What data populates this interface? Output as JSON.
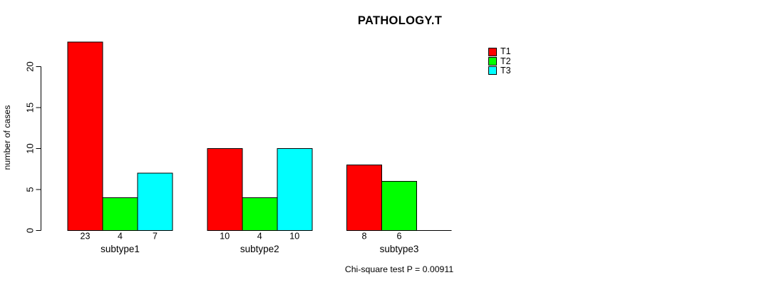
{
  "title": "PATHOLOGY.T",
  "chart_data": {
    "type": "bar",
    "title": "PATHOLOGY.T",
    "ylabel": "number of cases",
    "xlabel": "",
    "categories": [
      "subtype1",
      "subtype2",
      "subtype3"
    ],
    "series": [
      {
        "name": "T1",
        "color": "#ff0000",
        "values": [
          23,
          10,
          8
        ]
      },
      {
        "name": "T2",
        "color": "#00ff00",
        "values": [
          4,
          4,
          6
        ]
      },
      {
        "name": "T3",
        "color": "#00ffff",
        "values": [
          7,
          10,
          0
        ]
      }
    ],
    "yticks": [
      0,
      5,
      10,
      15,
      20
    ],
    "ylim": [
      0,
      23
    ],
    "grid": false,
    "legend_position": "top-right",
    "bar_value_labels_shown": true,
    "annotation": "Chi-square test P = 0.00911"
  }
}
